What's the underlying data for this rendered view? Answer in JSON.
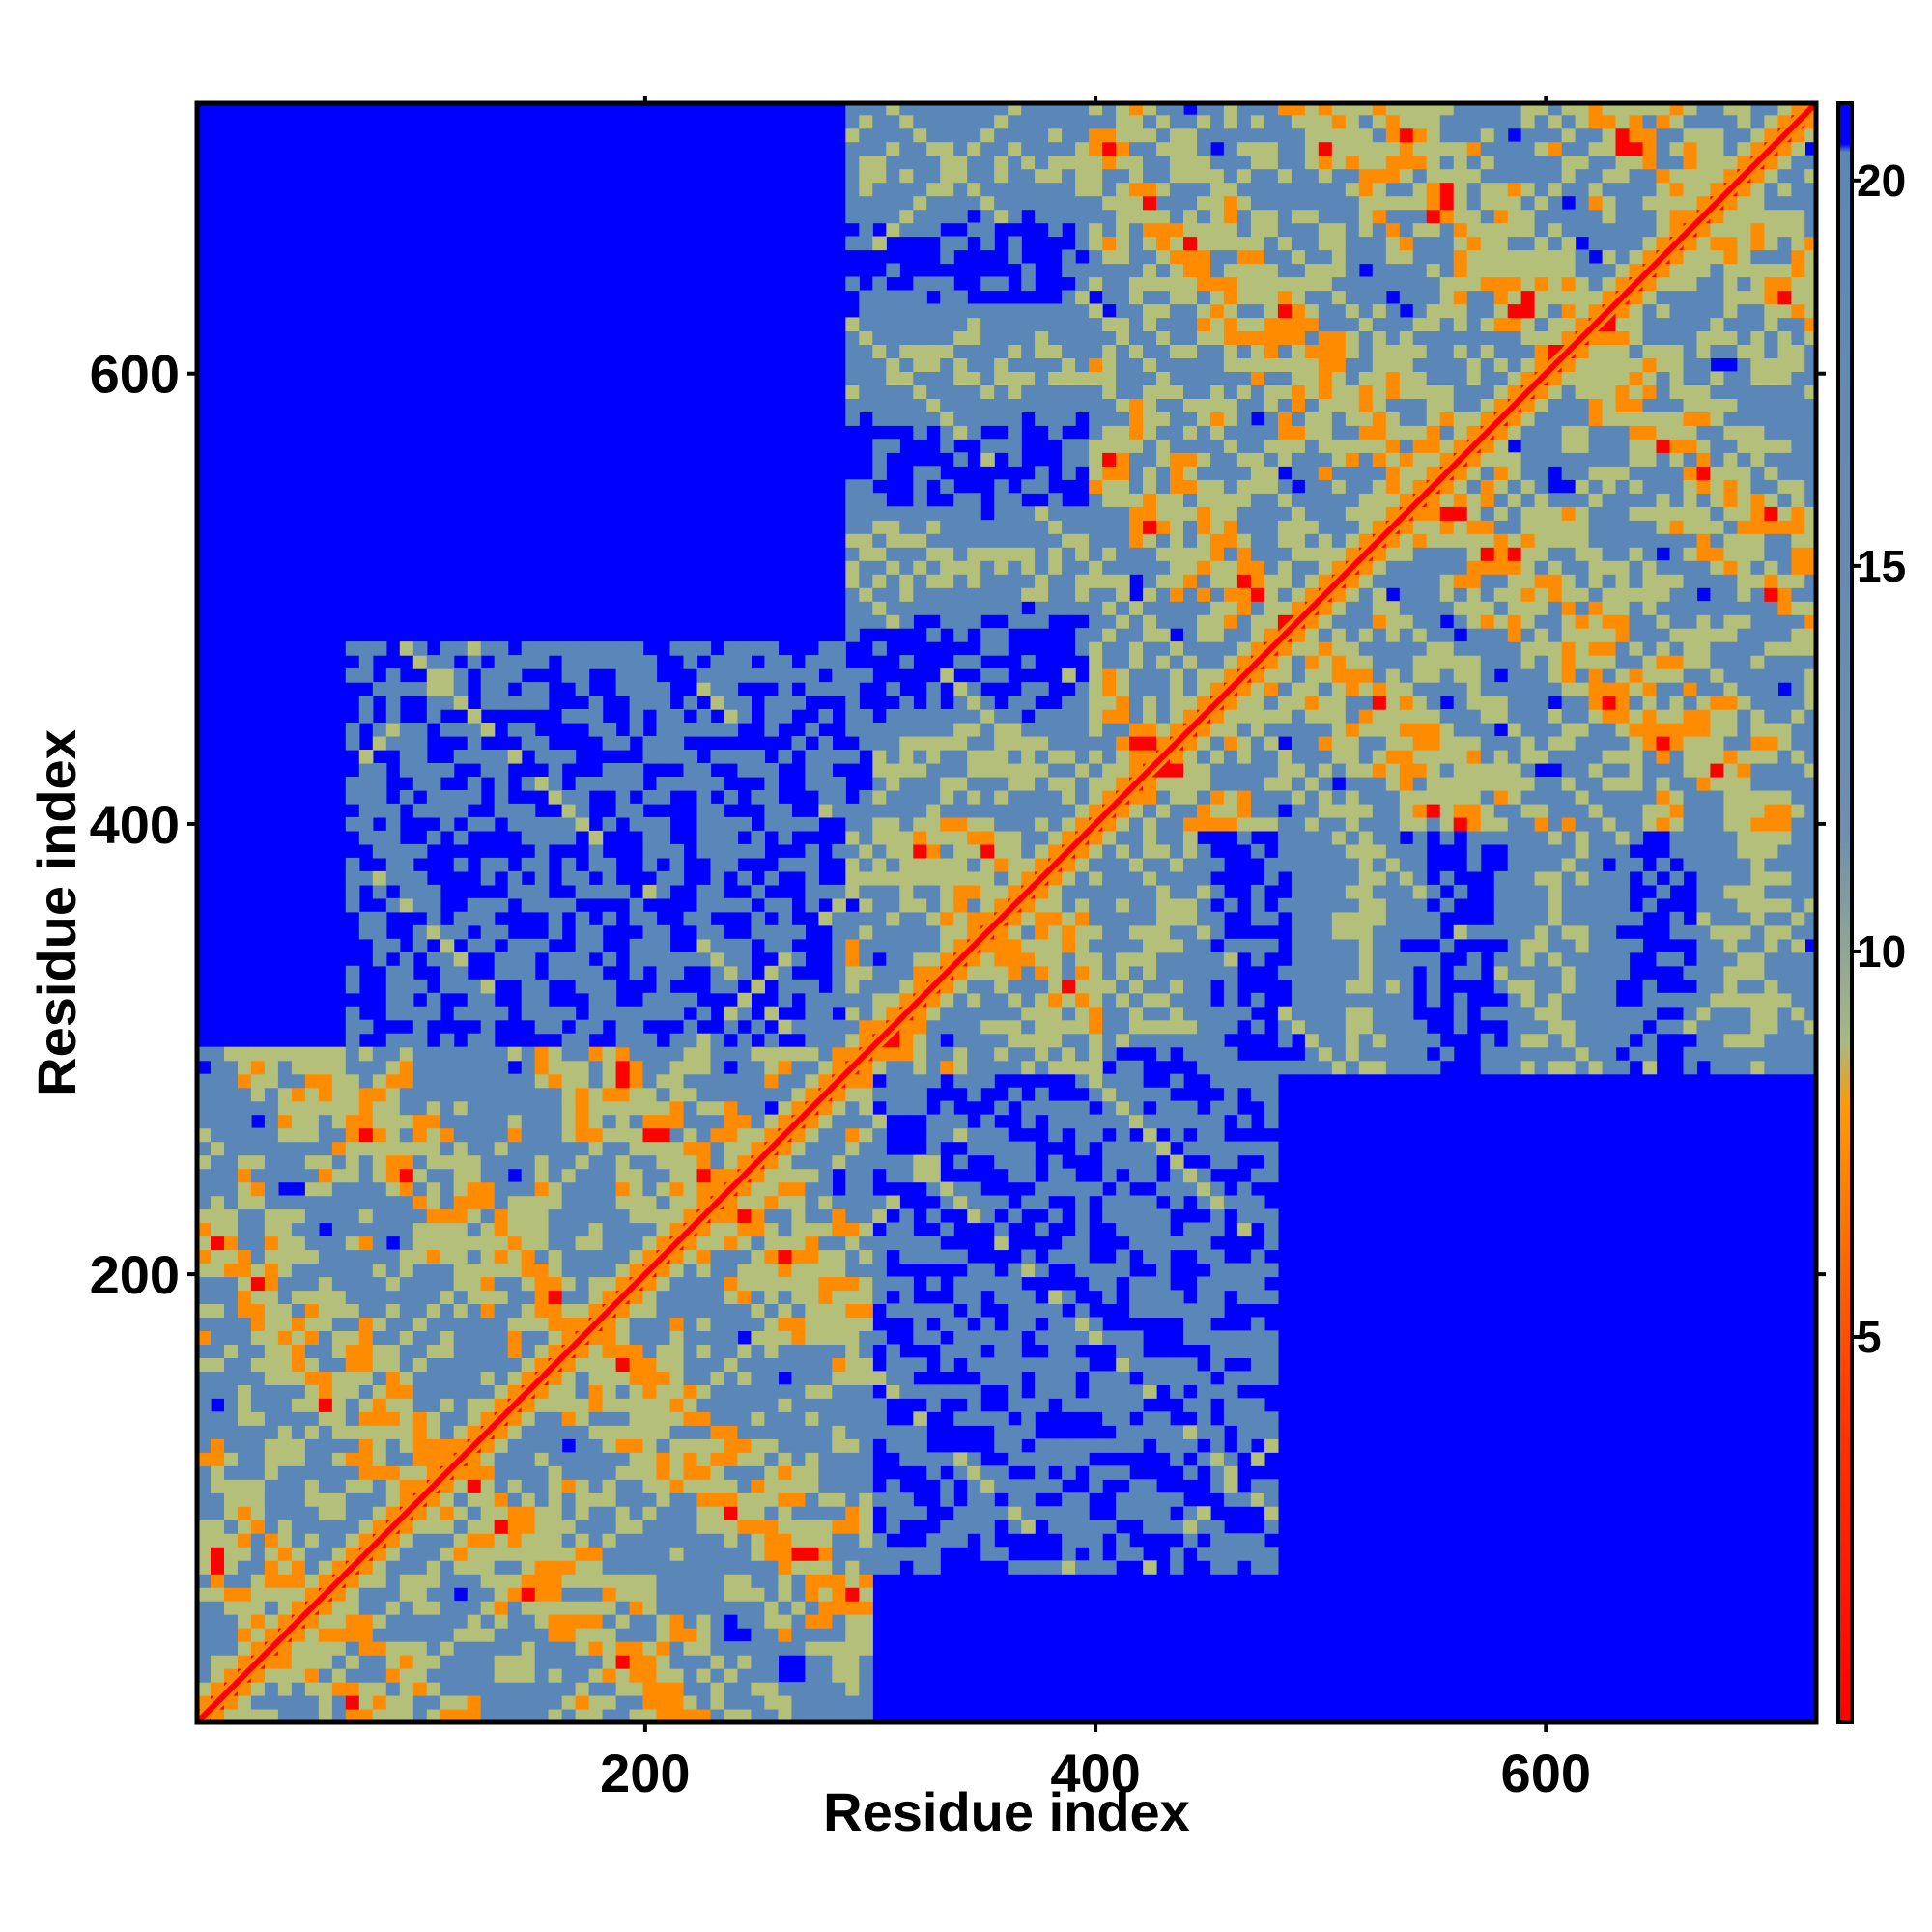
{
  "chart_data": {
    "type": "heatmap",
    "title": "",
    "xlabel": "Residue index",
    "ylabel": "Residue index",
    "xlim": [
      1,
      720
    ],
    "ylim": [
      1,
      720
    ],
    "x_ticks": [
      200,
      400,
      600
    ],
    "y_ticks": [
      200,
      400,
      600
    ],
    "colorbar": {
      "ticks": [
        5,
        10,
        15,
        20
      ],
      "range": [
        0,
        21
      ],
      "colors": [
        "#ff0000",
        "#ff8c00",
        "#b4c07a",
        "#5b87b8",
        "#0000ff"
      ]
    },
    "domains": [
      {
        "start": 1,
        "end": 300
      },
      {
        "start": 290,
        "end": 400
      },
      {
        "start": 400,
        "end": 720
      }
    ],
    "background_value": 21,
    "diagonal_value": 1,
    "grid": false,
    "legend": "colorbar-right"
  }
}
